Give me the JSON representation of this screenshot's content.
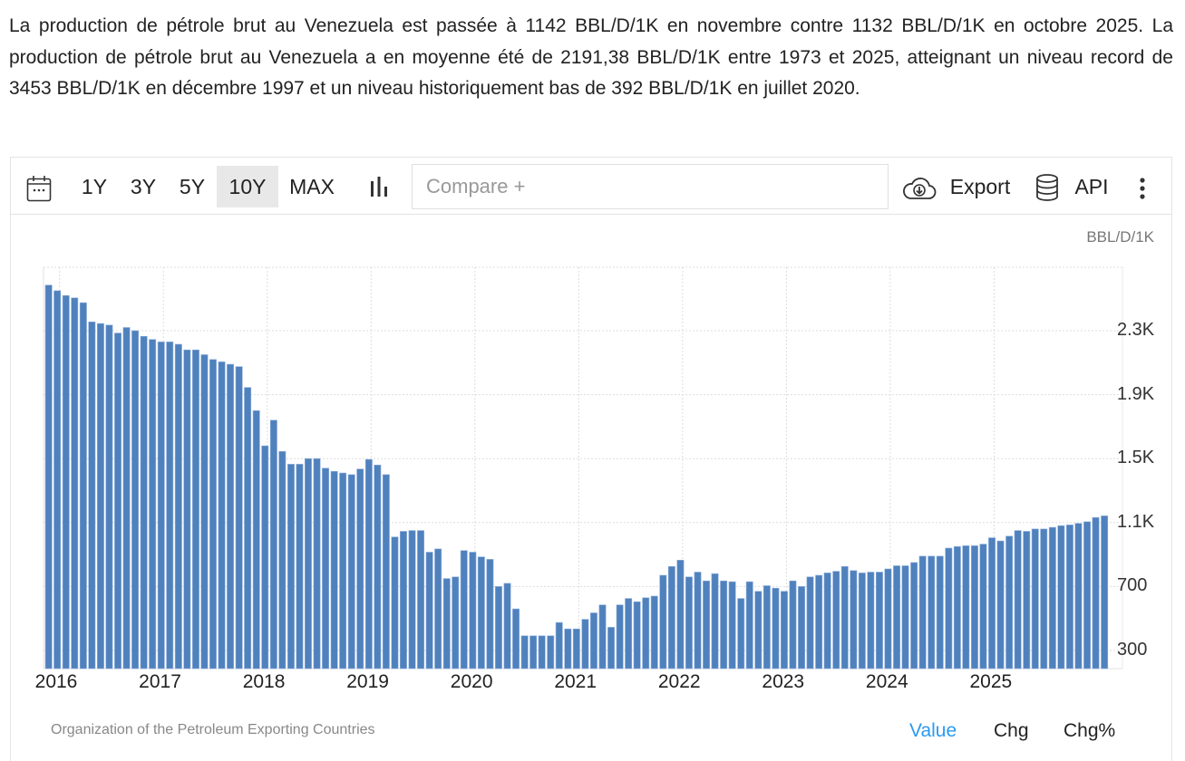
{
  "description": "La production de pétrole brut au Venezuela est passée à 1142 BBL/D/1K en novembre contre 1132 BBL/D/1K en octobre 2025. La production de pétrole brut au Venezuela a en moyenne été de 2191,38 BBL/D/1K entre 1973 et 2025, atteignant un niveau record de 3453 BBL/D/1K en décembre 1997 et un niveau historiquement bas de 392 BBL/D/1K en juillet 2020.",
  "toolbar": {
    "calendar_icon": "calendar-icon",
    "ranges": [
      "1Y",
      "3Y",
      "5Y",
      "10Y",
      "MAX"
    ],
    "active_range": "10Y",
    "chart_type_icon": "bar-chart-icon",
    "compare_placeholder": "Compare +",
    "export_label": "Export",
    "export_icon": "cloud-download-icon",
    "api_label": "API",
    "api_icon": "database-icon",
    "more_icon": "more-vertical-icon"
  },
  "footer": {
    "source": "Organization of the Petroleum Exporting Countries",
    "modes": [
      "Value",
      "Chg",
      "Chg%"
    ],
    "active_mode": "Value"
  },
  "colors": {
    "bar": "#4f81bd",
    "active_mode": "#2b9af3",
    "active_range_bg": "#e8e8e8"
  },
  "chart_data": {
    "type": "bar",
    "title": "",
    "unit_label": "BBL/D/1K",
    "xlabel": "",
    "ylabel": "BBL/D/1K",
    "ylim": [
      190,
      2700
    ],
    "yticks": [
      300,
      700,
      1100,
      1500,
      1900,
      2300
    ],
    "ytick_labels": [
      "300",
      "700",
      "1.1K",
      "1.5K",
      "1.9K",
      "2.3K"
    ],
    "xtick_labels": [
      "2016",
      "2017",
      "2018",
      "2019",
      "2020",
      "2021",
      "2022",
      "2023",
      "2024",
      "2025"
    ],
    "grid": true,
    "y_axis_position": "right",
    "start": "2016-01",
    "end": "2025-11",
    "frequency": "monthly",
    "values": [
      2585,
      2550,
      2520,
      2505,
      2475,
      2355,
      2345,
      2335,
      2285,
      2320,
      2300,
      2265,
      2245,
      2230,
      2230,
      2215,
      2180,
      2180,
      2150,
      2120,
      2105,
      2090,
      2075,
      1945,
      1800,
      1580,
      1740,
      1545,
      1465,
      1465,
      1500,
      1500,
      1440,
      1420,
      1410,
      1400,
      1435,
      1495,
      1460,
      1400,
      1010,
      1045,
      1050,
      1050,
      915,
      935,
      750,
      760,
      925,
      915,
      885,
      870,
      700,
      720,
      560,
      392,
      392,
      392,
      392,
      475,
      435,
      435,
      495,
      535,
      585,
      445,
      585,
      625,
      605,
      630,
      640,
      770,
      825,
      865,
      760,
      790,
      735,
      780,
      735,
      730,
      625,
      730,
      670,
      705,
      690,
      670,
      735,
      700,
      760,
      770,
      785,
      795,
      825,
      800,
      785,
      790,
      790,
      810,
      830,
      830,
      850,
      890,
      890,
      890,
      940,
      950,
      955,
      955,
      965,
      1005,
      985,
      1015,
      1050,
      1045,
      1060,
      1060,
      1070,
      1080,
      1085,
      1095,
      1105,
      1132,
      1142
    ]
  }
}
